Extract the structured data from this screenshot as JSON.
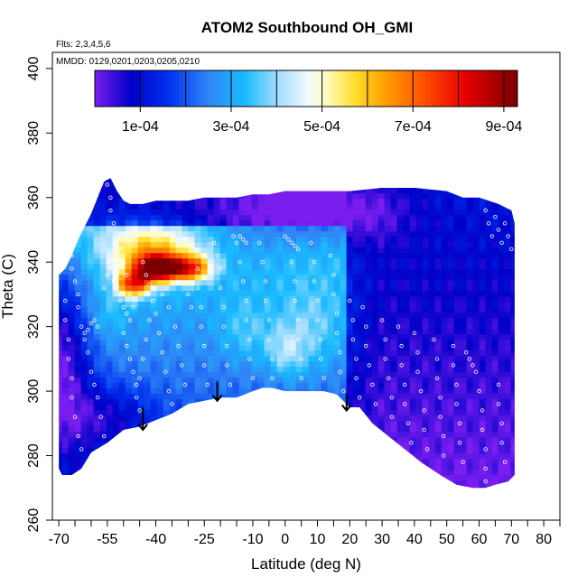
{
  "chart_data": {
    "type": "heatmap",
    "title": "ATOM2 Southbound OH_GMI",
    "notes": [
      "Flts: 2,3,4,5,6",
      "MMDD: 0129,0201,0203,0205,0210"
    ],
    "xlabel": "Latitude (deg N)",
    "ylabel": "Theta (C)",
    "xlim": [
      -72,
      85
    ],
    "ylim": [
      260,
      405
    ],
    "x_ticks": [
      -70,
      -65,
      -60,
      -55,
      -50,
      -45,
      -40,
      -35,
      -30,
      -25,
      -20,
      -15,
      -10,
      -5,
      0,
      5,
      10,
      15,
      20,
      25,
      30,
      35,
      40,
      45,
      50,
      55,
      60,
      65,
      70,
      75,
      80,
      85
    ],
    "x_tick_labels": [
      "-70",
      "",
      "",
      "-55",
      "",
      "",
      "-40",
      "",
      "",
      "-25",
      "",
      "",
      "-10",
      "",
      "0",
      "",
      "10",
      "",
      "20",
      "",
      "30",
      "",
      "40",
      "",
      "50",
      "",
      "60",
      "",
      "70",
      "",
      "80",
      ""
    ],
    "y_ticks": [
      260,
      280,
      300,
      320,
      340,
      360,
      380,
      400
    ],
    "y_tick_labels": [
      "260",
      "280",
      "300",
      "320",
      "340",
      "360",
      "380",
      "400"
    ],
    "colorbar": {
      "range": [
        0.0,
        0.00093
      ],
      "ticks": [
        0.0001,
        0.0003,
        0.0005,
        0.0007,
        0.0009
      ],
      "tick_labels": [
        "1e-04",
        "3e-04",
        "5e-04",
        "7e-04",
        "9e-04"
      ],
      "stops": [
        {
          "v": 0.0,
          "c": "#7a1ef0"
        },
        {
          "v": 8e-05,
          "c": "#0000c8"
        },
        {
          "v": 0.00016,
          "c": "#0030ee"
        },
        {
          "v": 0.00025,
          "c": "#2f86f6"
        },
        {
          "v": 0.00033,
          "c": "#19bbff"
        },
        {
          "v": 0.0004,
          "c": "#9fdcff"
        },
        {
          "v": 0.00047,
          "c": "#f2faff"
        },
        {
          "v": 0.00051,
          "c": "#fffcc0"
        },
        {
          "v": 0.00057,
          "c": "#ffe030"
        },
        {
          "v": 0.00064,
          "c": "#ff9e00"
        },
        {
          "v": 0.00072,
          "c": "#ff5400"
        },
        {
          "v": 0.00081,
          "c": "#ec0000"
        },
        {
          "v": 0.00093,
          "c": "#7a0000"
        }
      ]
    },
    "boundary_top": [
      [
        -70,
        336
      ],
      [
        -68,
        338
      ],
      [
        -66,
        342
      ],
      [
        -64,
        347
      ],
      [
        -62,
        351
      ],
      [
        -60,
        355
      ],
      [
        -58,
        360
      ],
      [
        -56,
        365
      ],
      [
        -54,
        366
      ],
      [
        -52,
        362
      ],
      [
        -50,
        359
      ],
      [
        -48,
        358
      ],
      [
        -44,
        358
      ],
      [
        -40,
        359
      ],
      [
        -35,
        359
      ],
      [
        -30,
        359
      ],
      [
        -25,
        360
      ],
      [
        -20,
        360
      ],
      [
        -15,
        360
      ],
      [
        -10,
        361
      ],
      [
        -5,
        361
      ],
      [
        0,
        362
      ],
      [
        10,
        362
      ],
      [
        20,
        362
      ],
      [
        30,
        363
      ],
      [
        40,
        363
      ],
      [
        50,
        362
      ],
      [
        55,
        360
      ],
      [
        60,
        360
      ],
      [
        66,
        358
      ],
      [
        70,
        356
      ],
      [
        71,
        352
      ]
    ],
    "boundary_bottom": [
      [
        71,
        274
      ],
      [
        69,
        272
      ],
      [
        65,
        271
      ],
      [
        62,
        270
      ],
      [
        58,
        270
      ],
      [
        53,
        271
      ],
      [
        48,
        274
      ],
      [
        42,
        278
      ],
      [
        37,
        282
      ],
      [
        32,
        286
      ],
      [
        27,
        290
      ],
      [
        23,
        295
      ],
      [
        20,
        295
      ],
      [
        16,
        299
      ],
      [
        12,
        300
      ],
      [
        8,
        300
      ],
      [
        5,
        300
      ],
      [
        0,
        300
      ],
      [
        -4,
        301
      ],
      [
        -7,
        301
      ],
      [
        -10,
        300
      ],
      [
        -15,
        298
      ],
      [
        -20,
        298
      ],
      [
        -25,
        297
      ],
      [
        -30,
        296
      ],
      [
        -35,
        293
      ],
      [
        -40,
        291
      ],
      [
        -45,
        289
      ],
      [
        -50,
        288
      ],
      [
        -55,
        284
      ],
      [
        -60,
        281
      ],
      [
        -63,
        276
      ],
      [
        -66,
        274
      ],
      [
        -69,
        274
      ],
      [
        -70,
        276
      ]
    ],
    "arrows": [
      {
        "x": -44,
        "y_top": 295,
        "y_bottom": 288
      },
      {
        "x": -21,
        "y_top": 303,
        "y_bottom": 297
      },
      {
        "x": 19,
        "y_top": 299,
        "y_bottom": 294
      }
    ],
    "field_features": [
      {
        "x": -70,
        "y": 312,
        "sx": 10,
        "sy": 30,
        "v": -0.00024
      },
      {
        "x": -55,
        "y": 292,
        "sx": 14,
        "sy": 10,
        "v": -0.00012
      },
      {
        "x": -45,
        "y": 342,
        "sx": 12,
        "sy": 8,
        "v": 0.00018
      },
      {
        "x": -35,
        "y": 345,
        "sx": 14,
        "sy": 6,
        "v": 0.00014
      },
      {
        "x": -40,
        "y": 338,
        "sx": 6,
        "sy": 4,
        "v": 0.0006
      },
      {
        "x": -30,
        "y": 338,
        "sx": 7,
        "sy": 4,
        "v": 0.00045
      },
      {
        "x": -47,
        "y": 333,
        "sx": 5,
        "sy": 4,
        "v": 0.00042
      },
      {
        "x": -18,
        "y": 350,
        "sx": 20,
        "sy": 10,
        "v": -8e-05
      },
      {
        "x": 12,
        "y": 356,
        "sx": 22,
        "sy": 10,
        "v": -0.00018
      },
      {
        "x": -12,
        "y": 318,
        "sx": 8,
        "sy": 10,
        "v": 8e-05
      },
      {
        "x": 0,
        "y": 312,
        "sx": 6,
        "sy": 8,
        "v": 0.00012
      },
      {
        "x": 8,
        "y": 318,
        "sx": 10,
        "sy": 14,
        "v": 0.0001
      },
      {
        "x": -55,
        "y": 323,
        "sx": 6,
        "sy": 8,
        "v": 6e-05
      }
    ],
    "sample_points": [
      {
        "x": -66,
        "y": 342
      },
      {
        "x": -66,
        "y": 338
      },
      {
        "x": -65,
        "y": 334
      },
      {
        "x": -64,
        "y": 330
      },
      {
        "x": -64,
        "y": 326
      },
      {
        "x": -63,
        "y": 320
      },
      {
        "x": -62,
        "y": 316
      },
      {
        "x": -61,
        "y": 312
      },
      {
        "x": -60,
        "y": 306
      },
      {
        "x": -59,
        "y": 302
      },
      {
        "x": -58,
        "y": 298
      },
      {
        "x": -57,
        "y": 292
      },
      {
        "x": -56,
        "y": 286
      },
      {
        "x": -68,
        "y": 328
      },
      {
        "x": -68,
        "y": 322
      },
      {
        "x": -67,
        "y": 316
      },
      {
        "x": -67,
        "y": 310
      },
      {
        "x": -66,
        "y": 304
      },
      {
        "x": -66,
        "y": 298
      },
      {
        "x": -65,
        "y": 292
      },
      {
        "x": -64,
        "y": 286
      },
      {
        "x": -63,
        "y": 282
      },
      {
        "x": -55,
        "y": 364
      },
      {
        "x": -54,
        "y": 360
      },
      {
        "x": -54,
        "y": 356
      },
      {
        "x": -53,
        "y": 352
      },
      {
        "x": -52,
        "y": 348
      },
      {
        "x": -51,
        "y": 344
      },
      {
        "x": -50,
        "y": 340
      },
      {
        "x": -49,
        "y": 336
      },
      {
        "x": -48,
        "y": 330
      },
      {
        "x": -47,
        "y": 326
      },
      {
        "x": -58,
        "y": 320
      },
      {
        "x": -59,
        "y": 322
      },
      {
        "x": -60,
        "y": 321
      },
      {
        "x": -61,
        "y": 319
      },
      {
        "x": -62,
        "y": 318
      },
      {
        "x": -56,
        "y": 332
      },
      {
        "x": -55,
        "y": 336
      },
      {
        "x": -54,
        "y": 338
      },
      {
        "x": -53,
        "y": 334
      },
      {
        "x": -52,
        "y": 330
      },
      {
        "x": -51,
        "y": 328
      },
      {
        "x": -50,
        "y": 326
      },
      {
        "x": -49,
        "y": 324
      },
      {
        "x": -48,
        "y": 322
      },
      {
        "x": -50,
        "y": 318
      },
      {
        "x": -49,
        "y": 314
      },
      {
        "x": -48,
        "y": 310
      },
      {
        "x": -47,
        "y": 306
      },
      {
        "x": -46,
        "y": 302
      },
      {
        "x": -46,
        "y": 298
      },
      {
        "x": -45,
        "y": 294
      },
      {
        "x": -44,
        "y": 340
      },
      {
        "x": -43,
        "y": 336
      },
      {
        "x": -42,
        "y": 333
      },
      {
        "x": -41,
        "y": 328
      },
      {
        "x": -40,
        "y": 324
      },
      {
        "x": -39,
        "y": 318
      },
      {
        "x": -38,
        "y": 312
      },
      {
        "x": -37,
        "y": 306
      },
      {
        "x": -36,
        "y": 300
      },
      {
        "x": -35,
        "y": 296
      },
      {
        "x": -42,
        "y": 322
      },
      {
        "x": -43,
        "y": 316
      },
      {
        "x": -44,
        "y": 310
      },
      {
        "x": -45,
        "y": 304
      },
      {
        "x": -34,
        "y": 320
      },
      {
        "x": -33,
        "y": 314
      },
      {
        "x": -32,
        "y": 308
      },
      {
        "x": -31,
        "y": 302
      },
      {
        "x": -28,
        "y": 344
      },
      {
        "x": -27,
        "y": 338
      },
      {
        "x": -27,
        "y": 332
      },
      {
        "x": -26,
        "y": 326
      },
      {
        "x": -26,
        "y": 320
      },
      {
        "x": -25,
        "y": 314
      },
      {
        "x": -25,
        "y": 308
      },
      {
        "x": -24,
        "y": 302
      },
      {
        "x": -22,
        "y": 346
      },
      {
        "x": -21,
        "y": 342
      },
      {
        "x": -20,
        "y": 338
      },
      {
        "x": -20,
        "y": 332
      },
      {
        "x": -19,
        "y": 326
      },
      {
        "x": -19,
        "y": 320
      },
      {
        "x": -18,
        "y": 314
      },
      {
        "x": -18,
        "y": 308
      },
      {
        "x": -17,
        "y": 302
      },
      {
        "x": -16,
        "y": 348
      },
      {
        "x": -15,
        "y": 346
      },
      {
        "x": -14,
        "y": 348
      },
      {
        "x": -13,
        "y": 347
      },
      {
        "x": -12,
        "y": 346
      },
      {
        "x": -14,
        "y": 340
      },
      {
        "x": -13,
        "y": 334
      },
      {
        "x": -12,
        "y": 328
      },
      {
        "x": -12,
        "y": 322
      },
      {
        "x": -11,
        "y": 316
      },
      {
        "x": -11,
        "y": 310
      },
      {
        "x": -10,
        "y": 304
      },
      {
        "x": -8,
        "y": 346
      },
      {
        "x": -7,
        "y": 340
      },
      {
        "x": -6,
        "y": 334
      },
      {
        "x": -6,
        "y": 328
      },
      {
        "x": -5,
        "y": 322
      },
      {
        "x": -5,
        "y": 316
      },
      {
        "x": -4,
        "y": 310
      },
      {
        "x": -4,
        "y": 304
      },
      {
        "x": 0,
        "y": 348
      },
      {
        "x": 1,
        "y": 347
      },
      {
        "x": 2,
        "y": 346
      },
      {
        "x": 3,
        "y": 345
      },
      {
        "x": 4,
        "y": 344
      },
      {
        "x": 2,
        "y": 340
      },
      {
        "x": 3,
        "y": 334
      },
      {
        "x": 3,
        "y": 328
      },
      {
        "x": 4,
        "y": 322
      },
      {
        "x": 4,
        "y": 316
      },
      {
        "x": 5,
        "y": 310
      },
      {
        "x": 5,
        "y": 304
      },
      {
        "x": 8,
        "y": 346
      },
      {
        "x": 9,
        "y": 340
      },
      {
        "x": 9,
        "y": 334
      },
      {
        "x": 10,
        "y": 328
      },
      {
        "x": 10,
        "y": 322
      },
      {
        "x": 11,
        "y": 316
      },
      {
        "x": 11,
        "y": 310
      },
      {
        "x": 12,
        "y": 304
      },
      {
        "x": 14,
        "y": 342
      },
      {
        "x": 15,
        "y": 336
      },
      {
        "x": 15,
        "y": 330
      },
      {
        "x": 16,
        "y": 324
      },
      {
        "x": 16,
        "y": 318
      },
      {
        "x": 17,
        "y": 312
      },
      {
        "x": 17,
        "y": 306
      },
      {
        "x": 18,
        "y": 300
      },
      {
        "x": 20,
        "y": 328
      },
      {
        "x": 21,
        "y": 322
      },
      {
        "x": 21,
        "y": 316
      },
      {
        "x": 22,
        "y": 310
      },
      {
        "x": 22,
        "y": 304
      },
      {
        "x": 23,
        "y": 298
      },
      {
        "x": 24,
        "y": 326
      },
      {
        "x": 25,
        "y": 320
      },
      {
        "x": 25,
        "y": 314
      },
      {
        "x": 26,
        "y": 308
      },
      {
        "x": 27,
        "y": 302
      },
      {
        "x": 28,
        "y": 296
      },
      {
        "x": 30,
        "y": 322
      },
      {
        "x": 31,
        "y": 316
      },
      {
        "x": 31,
        "y": 310
      },
      {
        "x": 32,
        "y": 304
      },
      {
        "x": 33,
        "y": 298
      },
      {
        "x": 33,
        "y": 292
      },
      {
        "x": 35,
        "y": 320
      },
      {
        "x": 36,
        "y": 314
      },
      {
        "x": 36,
        "y": 308
      },
      {
        "x": 37,
        "y": 302
      },
      {
        "x": 37,
        "y": 296
      },
      {
        "x": 38,
        "y": 290
      },
      {
        "x": 39,
        "y": 284
      },
      {
        "x": 40,
        "y": 318
      },
      {
        "x": 41,
        "y": 312
      },
      {
        "x": 41,
        "y": 306
      },
      {
        "x": 42,
        "y": 300
      },
      {
        "x": 43,
        "y": 294
      },
      {
        "x": 43,
        "y": 288
      },
      {
        "x": 44,
        "y": 282
      },
      {
        "x": 46,
        "y": 316
      },
      {
        "x": 47,
        "y": 310
      },
      {
        "x": 47,
        "y": 304
      },
      {
        "x": 48,
        "y": 298
      },
      {
        "x": 48,
        "y": 292
      },
      {
        "x": 49,
        "y": 286
      },
      {
        "x": 49,
        "y": 280
      },
      {
        "x": 52,
        "y": 314
      },
      {
        "x": 52,
        "y": 308
      },
      {
        "x": 53,
        "y": 302
      },
      {
        "x": 53,
        "y": 296
      },
      {
        "x": 54,
        "y": 290
      },
      {
        "x": 54,
        "y": 284
      },
      {
        "x": 55,
        "y": 278
      },
      {
        "x": 56,
        "y": 312
      },
      {
        "x": 57,
        "y": 310
      },
      {
        "x": 58,
        "y": 308
      },
      {
        "x": 59,
        "y": 306
      },
      {
        "x": 60,
        "y": 300
      },
      {
        "x": 61,
        "y": 294
      },
      {
        "x": 61,
        "y": 288
      },
      {
        "x": 62,
        "y": 282
      },
      {
        "x": 62,
        "y": 276
      },
      {
        "x": 62,
        "y": 272
      },
      {
        "x": 66,
        "y": 302
      },
      {
        "x": 66,
        "y": 296
      },
      {
        "x": 67,
        "y": 290
      },
      {
        "x": 67,
        "y": 284
      },
      {
        "x": 68,
        "y": 278
      },
      {
        "x": 62,
        "y": 356
      },
      {
        "x": 63,
        "y": 352
      },
      {
        "x": 64,
        "y": 348
      },
      {
        "x": 65,
        "y": 354
      },
      {
        "x": 66,
        "y": 350
      },
      {
        "x": 67,
        "y": 346
      },
      {
        "x": 68,
        "y": 352
      },
      {
        "x": 69,
        "y": 348
      },
      {
        "x": 70,
        "y": 344
      },
      {
        "x": -38,
        "y": 330
      },
      {
        "x": -36,
        "y": 326
      },
      {
        "x": -30,
        "y": 330
      },
      {
        "x": -29,
        "y": 326
      }
    ]
  }
}
